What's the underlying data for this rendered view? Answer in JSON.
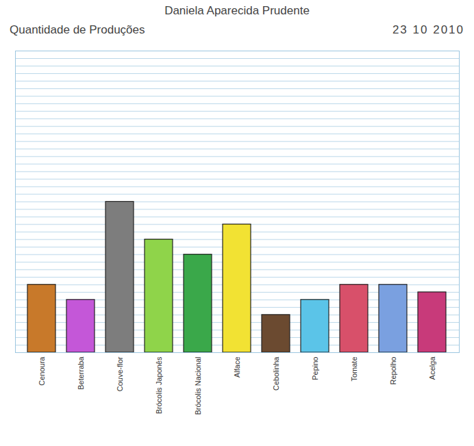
{
  "chart_data": {
    "type": "bar",
    "title": "Quantidade de Produções",
    "annotations": [
      "Daniela Aparecida Prudente",
      "23 10 2010"
    ],
    "categories": [
      "Cenoura",
      "Beterraba",
      "Couve-flor",
      "Brócolis Japonês",
      "Brócolis Nacional",
      "Alface",
      "Cebolinha",
      "Pepino",
      "Tomate",
      "Repolho",
      "Acelga"
    ],
    "values": [
      9,
      7,
      20,
      15,
      13,
      17,
      5,
      7,
      9,
      9,
      8
    ],
    "colors": [
      "#c8792a",
      "#c457d8",
      "#7d7d7d",
      "#8fd44a",
      "#3aa84a",
      "#f2e233",
      "#6b4a30",
      "#5bc4e8",
      "#d8506a",
      "#7aa0e0",
      "#c83a7a"
    ],
    "ylim": [
      0,
      40
    ],
    "yticks": [
      0,
      1,
      2,
      3,
      4,
      5,
      6,
      7,
      8,
      9,
      10,
      11,
      12,
      13,
      14,
      15,
      16,
      17,
      18,
      19,
      20,
      21,
      22,
      23,
      24,
      25,
      26,
      27,
      28,
      29,
      30,
      31,
      32,
      33,
      34,
      35,
      36,
      37,
      38,
      39,
      40
    ],
    "grid": true,
    "tick_labels": "x"
  }
}
